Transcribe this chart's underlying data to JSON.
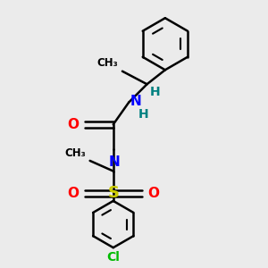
{
  "bg_color": "#ebebeb",
  "line_color": "#000000",
  "bond_width": 1.8,
  "atom_colors": {
    "O": "#ff0000",
    "N": "#0000ff",
    "S": "#cccc00",
    "Cl": "#00bb00",
    "H": "#008080",
    "C": "#000000"
  },
  "font_size": 10,
  "figsize": [
    3.0,
    3.0
  ],
  "dpi": 100
}
